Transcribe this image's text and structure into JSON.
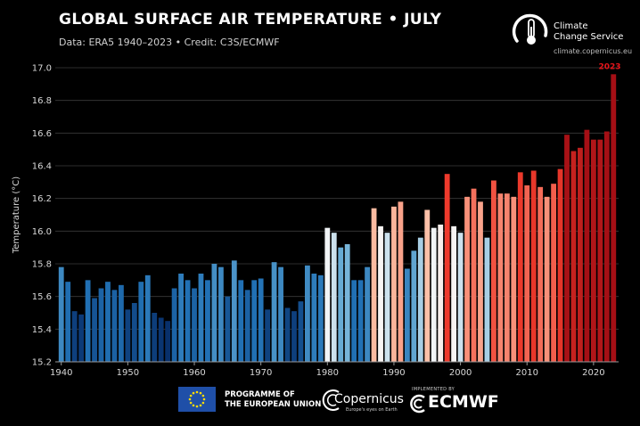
{
  "header": {
    "title": "GLOBAL SURFACE AIR TEMPERATURE • JULY",
    "subtitle": "Data: ERA5 1940–2023 • Credit: C3S/ECMWF"
  },
  "logo": {
    "name": "Climate\nChange Service",
    "url": "climate.copernicus.eu"
  },
  "footer": {
    "eu_text": "PROGRAMME OF\nTHE EUROPEAN UNION",
    "copernicus_name": "Copernicus",
    "copernicus_tagline": "Europe's eyes on Earth",
    "implemented_by": "IMPLEMENTED BY",
    "ecmwf_name": "ECMWF"
  },
  "colors": {
    "background": "#000000",
    "highlight_label": "#e8141a",
    "cold_end": "#08306b",
    "neutral": "#f7f7f7",
    "warm_end": "#a50f15"
  },
  "chart_data": {
    "type": "bar",
    "ylabel": "Temperature (°C)",
    "ylim": [
      15.2,
      17.0
    ],
    "yticks": [
      "15.2",
      "15.4",
      "15.6",
      "15.8",
      "16.0",
      "16.2",
      "16.4",
      "16.6",
      "16.8",
      "17.0"
    ],
    "xticks": [
      "1940",
      "1950",
      "1960",
      "1970",
      "1980",
      "1990",
      "2000",
      "2010",
      "2020"
    ],
    "highlight": {
      "year": "2023",
      "label": "2023"
    },
    "categories": [
      "1940",
      "1941",
      "1942",
      "1943",
      "1944",
      "1945",
      "1946",
      "1947",
      "1948",
      "1949",
      "1950",
      "1951",
      "1952",
      "1953",
      "1954",
      "1955",
      "1956",
      "1957",
      "1958",
      "1959",
      "1960",
      "1961",
      "1962",
      "1963",
      "1964",
      "1965",
      "1966",
      "1967",
      "1968",
      "1969",
      "1970",
      "1971",
      "1972",
      "1973",
      "1974",
      "1975",
      "1976",
      "1977",
      "1978",
      "1979",
      "1980",
      "1981",
      "1982",
      "1983",
      "1984",
      "1985",
      "1986",
      "1987",
      "1988",
      "1989",
      "1990",
      "1991",
      "1992",
      "1993",
      "1994",
      "1995",
      "1996",
      "1997",
      "1998",
      "1999",
      "2000",
      "2001",
      "2002",
      "2003",
      "2004",
      "2005",
      "2006",
      "2007",
      "2008",
      "2009",
      "2010",
      "2011",
      "2012",
      "2013",
      "2014",
      "2015",
      "2016",
      "2017",
      "2018",
      "2019",
      "2020",
      "2021",
      "2022",
      "2023"
    ],
    "values": [
      15.78,
      15.69,
      15.51,
      15.49,
      15.7,
      15.59,
      15.65,
      15.69,
      15.64,
      15.67,
      15.52,
      15.56,
      15.69,
      15.73,
      15.5,
      15.47,
      15.45,
      15.65,
      15.74,
      15.7,
      15.65,
      15.74,
      15.7,
      15.8,
      15.78,
      15.6,
      15.82,
      15.7,
      15.64,
      15.7,
      15.71,
      15.52,
      15.81,
      15.78,
      15.53,
      15.51,
      15.57,
      15.79,
      15.74,
      15.73,
      16.02,
      15.99,
      15.9,
      15.92,
      15.7,
      15.7,
      15.78,
      16.14,
      16.03,
      15.99,
      16.15,
      16.18,
      15.77,
      15.88,
      15.96,
      16.13,
      16.02,
      16.04,
      16.35,
      16.03,
      15.99,
      16.21,
      16.26,
      16.18,
      15.96,
      16.31,
      16.23,
      16.23,
      16.21,
      16.36,
      16.28,
      16.37,
      16.27,
      16.21,
      16.29,
      16.38,
      16.59,
      16.49,
      16.51,
      16.62,
      16.56,
      16.56,
      16.61,
      16.96
    ]
  }
}
